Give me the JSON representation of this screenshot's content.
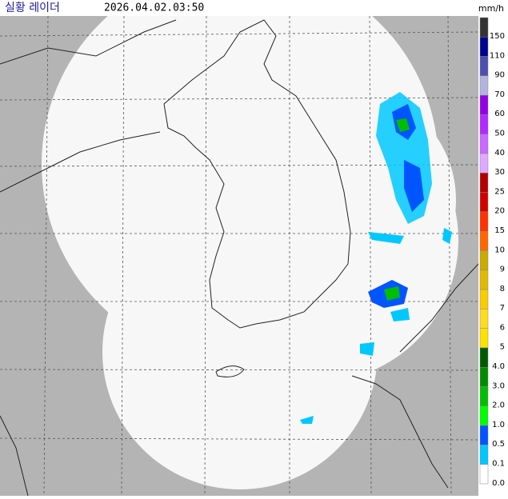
{
  "header": {
    "title": "실황 레이더",
    "timestamp": "2026.04.02.03:50",
    "unit": "mm/h"
  },
  "legend": [
    {
      "label": "150",
      "color": "#333333"
    },
    {
      "label": "110",
      "color": "#000390"
    },
    {
      "label": "90",
      "color": "#4c4eb1"
    },
    {
      "label": "70",
      "color": "#b3b4de"
    },
    {
      "label": "60",
      "color": "#9300e4"
    },
    {
      "label": "50",
      "color": "#b329ff"
    },
    {
      "label": "40",
      "color": "#c969ff"
    },
    {
      "label": "30",
      "color": "#e0a9ff"
    },
    {
      "label": "25",
      "color": "#b40000"
    },
    {
      "label": "20",
      "color": "#d20000"
    },
    {
      "label": "15",
      "color": "#ff3200"
    },
    {
      "label": "10",
      "color": "#ff6600"
    },
    {
      "label": "9",
      "color": "#ccaa00"
    },
    {
      "label": "8",
      "color": "#e0b900"
    },
    {
      "label": "7",
      "color": "#f9cd00"
    },
    {
      "label": "6",
      "color": "#ffdc1f"
    },
    {
      "label": "5",
      "color": "#ffe100"
    },
    {
      "label": "4.0",
      "color": "#005a00"
    },
    {
      "label": "3.0",
      "color": "#008c00"
    },
    {
      "label": "2.0",
      "color": "#00be00"
    },
    {
      "label": "1.0",
      "color": "#00ff00"
    },
    {
      "label": "0.5",
      "color": "#0055ff"
    },
    {
      "label": "0.1",
      "color": "#00c8ff"
    },
    {
      "label": "0.0",
      "color": "#ffffff"
    }
  ]
}
